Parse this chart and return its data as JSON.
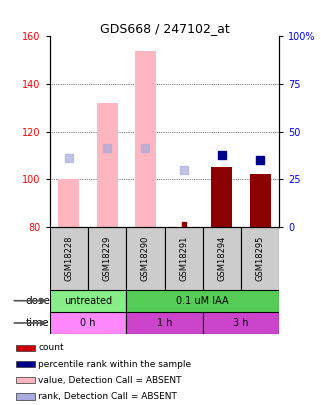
{
  "title": "GDS668 / 247102_at",
  "samples": [
    "GSM18228",
    "GSM18229",
    "GSM18290",
    "GSM18291",
    "GSM18294",
    "GSM18295"
  ],
  "ylim_left": [
    80,
    160
  ],
  "ylim_right": [
    0,
    100
  ],
  "yticks_left": [
    80,
    100,
    120,
    140,
    160
  ],
  "yticks_right": [
    0,
    25,
    50,
    75,
    100
  ],
  "yticklabels_right": [
    "0",
    "25",
    "50",
    "75",
    "100%"
  ],
  "bar_bottom": 80,
  "absent_value_bars": {
    "GSM18228": 100,
    "GSM18229": 132,
    "GSM18290": 154,
    "GSM18291": null,
    "GSM18294": null,
    "GSM18295": null
  },
  "present_value_bars": {
    "GSM18228": null,
    "GSM18229": null,
    "GSM18290": null,
    "GSM18291": null,
    "GSM18294": 105,
    "GSM18295": 102
  },
  "absent_rank_markers": {
    "GSM18228": 109,
    "GSM18229": 113,
    "GSM18290": 113,
    "GSM18291": 104,
    "GSM18294": null,
    "GSM18295": null
  },
  "present_rank_markers": {
    "GSM18228": null,
    "GSM18229": null,
    "GSM18290": null,
    "GSM18291": null,
    "GSM18294": 110,
    "GSM18295": 108
  },
  "present_value_dot": {
    "GSM18291": 81
  },
  "absent_value_color": "#FFB6C1",
  "present_value_color": "#8B0000",
  "absent_rank_color": "#AAAADD",
  "present_rank_color": "#00008B",
  "dose_groups": [
    {
      "label": "untreated",
      "samples": [
        "GSM18228",
        "GSM18229"
      ],
      "color": "#88EE88"
    },
    {
      "label": "0.1 uM IAA",
      "samples": [
        "GSM18290",
        "GSM18291",
        "GSM18294",
        "GSM18295"
      ],
      "color": "#55CC55"
    }
  ],
  "time_groups": [
    {
      "label": "0 h",
      "samples": [
        "GSM18228",
        "GSM18229"
      ],
      "color": "#FF88FF"
    },
    {
      "label": "1 h",
      "samples": [
        "GSM18290",
        "GSM18291"
      ],
      "color": "#CC44CC"
    },
    {
      "label": "3 h",
      "samples": [
        "GSM18294",
        "GSM18295"
      ],
      "color": "#CC44CC"
    }
  ],
  "legend_items": [
    {
      "color": "#CC0000",
      "label": "count"
    },
    {
      "color": "#00008B",
      "label": "percentile rank within the sample"
    },
    {
      "color": "#FFB6C1",
      "label": "value, Detection Call = ABSENT"
    },
    {
      "color": "#AAAADD",
      "label": "rank, Detection Call = ABSENT"
    }
  ],
  "bar_width": 0.55,
  "marker_size": 6
}
